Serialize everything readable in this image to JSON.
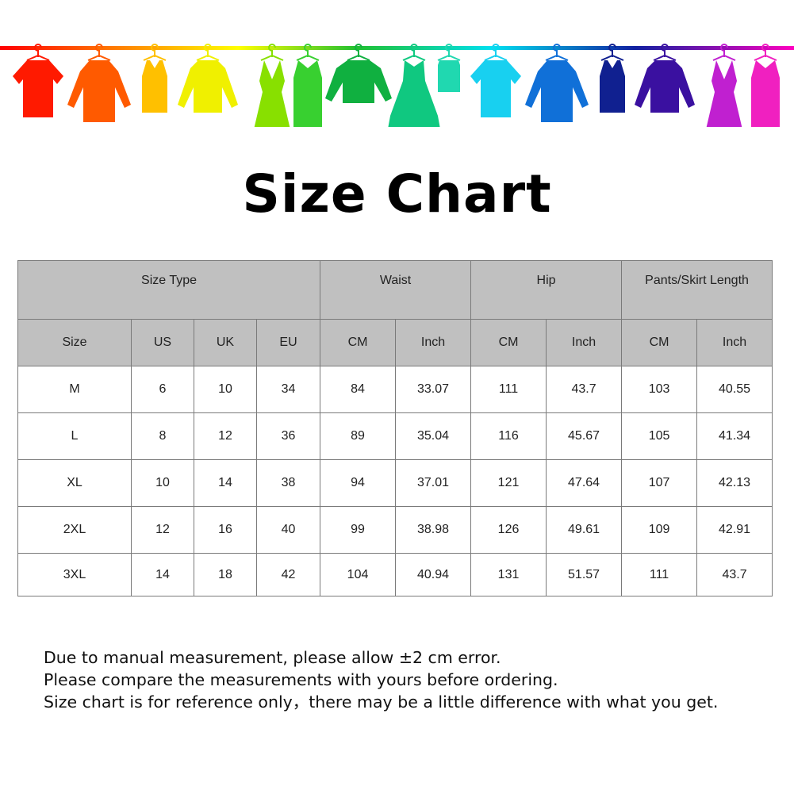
{
  "title": "Size Chart",
  "banner": {
    "garment_colors": [
      "#ff1a00",
      "#ff5a00",
      "#ffc000",
      "#f0f000",
      "#88e000",
      "#38d030",
      "#10b040",
      "#10c880",
      "#20d8b0",
      "#18d0f0",
      "#1070d8",
      "#102090",
      "#3a10a0",
      "#c020d0",
      "#f020c0"
    ],
    "garment_types": [
      "tshirt",
      "shirt",
      "tank",
      "cardigan",
      "dress",
      "belted-dress",
      "sweater",
      "ball-dress",
      "camisole",
      "tshirt",
      "shirt",
      "tank",
      "cardigan",
      "dress",
      "belted-dress"
    ]
  },
  "table": {
    "group_headers": [
      "Size Type",
      "Waist",
      "Hip",
      "Pants/Skirt Length"
    ],
    "sub_headers": [
      "Size",
      "US",
      "UK",
      "EU",
      "CM",
      "Inch",
      "CM",
      "Inch",
      "CM",
      "Inch"
    ],
    "rows": [
      [
        "M",
        "6",
        "10",
        "34",
        "84",
        "33.07",
        "111",
        "43.7",
        "103",
        "40.55"
      ],
      [
        "L",
        "8",
        "12",
        "36",
        "89",
        "35.04",
        "116",
        "45.67",
        "105",
        "41.34"
      ],
      [
        "XL",
        "10",
        "14",
        "38",
        "94",
        "37.01",
        "121",
        "47.64",
        "107",
        "42.13"
      ],
      [
        "2XL",
        "12",
        "16",
        "40",
        "99",
        "38.98",
        "126",
        "49.61",
        "109",
        "42.91"
      ],
      [
        "3XL",
        "14",
        "18",
        "42",
        "104",
        "40.94",
        "131",
        "51.57",
        "111",
        "43.7"
      ]
    ]
  },
  "notes": [
    "Due to manual measurement, please allow ±2 cm error.",
    "Please compare the measurements with yours before ordering.",
    "Size chart is for reference only，there may be a little difference with what you get."
  ]
}
